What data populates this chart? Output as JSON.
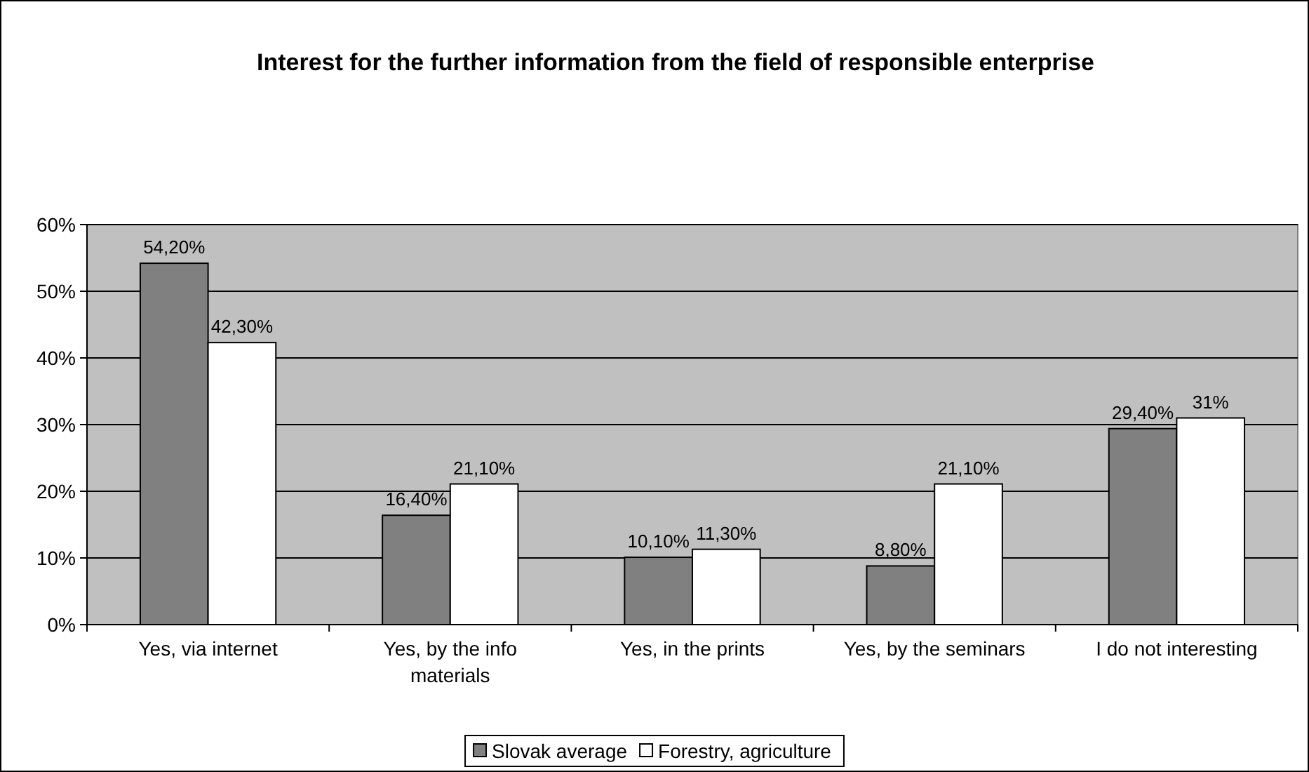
{
  "chart_data": {
    "type": "bar",
    "title": "Interest for the further information from the field of responsible enterprise",
    "categories": [
      "Yes, via internet",
      "Yes, by the info materials",
      "Yes, in the prints",
      "Yes, by the seminars",
      "I do not interesting"
    ],
    "series": [
      {
        "name": "Slovak average",
        "color": "#808080",
        "values": [
          54.2,
          16.4,
          10.1,
          8.8,
          29.4
        ],
        "value_labels": [
          "54,20%",
          "16,40%",
          "10,10%",
          "8,80%",
          "29,40%"
        ]
      },
      {
        "name": "Forestry, agriculture",
        "color": "#ffffff",
        "values": [
          42.3,
          21.1,
          11.3,
          21.1,
          31
        ],
        "value_labels": [
          "42,30%",
          "21,10%",
          "11,30%",
          "21,10%",
          "31%"
        ]
      }
    ],
    "ylim": [
      0,
      60
    ],
    "yticks": [
      {
        "value": 0,
        "label": "0%"
      },
      {
        "value": 10,
        "label": "10%"
      },
      {
        "value": 20,
        "label": "20%"
      },
      {
        "value": 30,
        "label": "30%"
      },
      {
        "value": 40,
        "label": "40%"
      },
      {
        "value": 50,
        "label": "50%"
      },
      {
        "value": 60,
        "label": "60%"
      }
    ],
    "grid": "y",
    "legend": "bottom"
  }
}
